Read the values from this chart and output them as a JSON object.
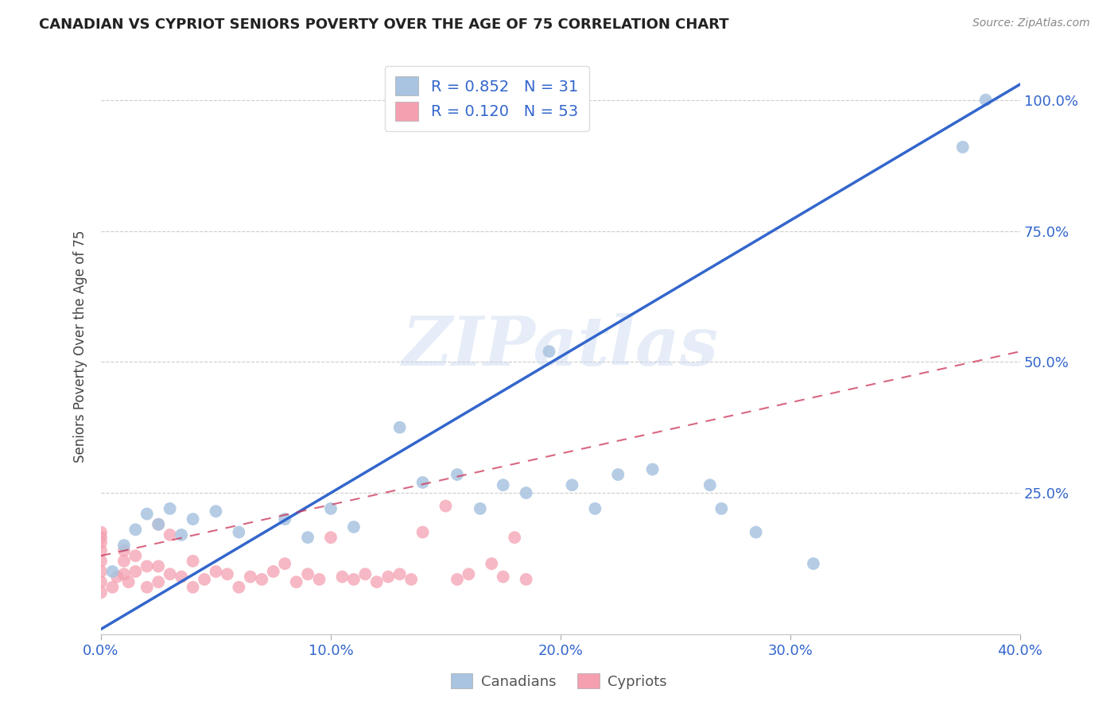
{
  "title": "CANADIAN VS CYPRIOT SENIORS POVERTY OVER THE AGE OF 75 CORRELATION CHART",
  "source": "Source: ZipAtlas.com",
  "ylabel": "Seniors Poverty Over the Age of 75",
  "xlim": [
    0.0,
    0.4
  ],
  "ylim": [
    -0.02,
    1.08
  ],
  "x_ticks": [
    0.0,
    0.1,
    0.2,
    0.3,
    0.4
  ],
  "x_tick_labels": [
    "0.0%",
    "10.0%",
    "20.0%",
    "30.0%",
    "40.0%"
  ],
  "y_ticks": [
    0.25,
    0.5,
    0.75,
    1.0
  ],
  "y_tick_labels": [
    "25.0%",
    "50.0%",
    "75.0%",
    "100.0%"
  ],
  "canadian_color": "#a8c4e0",
  "cypriot_color": "#f4a0b0",
  "canadian_line_color": "#3366cc",
  "cypriot_line_color": "#cc3355",
  "canadian_R": 0.852,
  "canadian_N": 31,
  "cypriot_R": 0.12,
  "cypriot_N": 53,
  "watermark": "ZIPatlas",
  "background_color": "#ffffff",
  "grid_color": "#cccccc",
  "ca_line_x0": 0.0,
  "ca_line_y0": -0.01,
  "ca_line_x1": 0.4,
  "ca_line_y1": 1.03,
  "cy_line_x0": 0.0,
  "cy_line_y0": 0.13,
  "cy_line_x1": 0.4,
  "cy_line_y1": 0.52,
  "canadians_x": [
    0.005,
    0.01,
    0.015,
    0.02,
    0.025,
    0.03,
    0.035,
    0.04,
    0.05,
    0.06,
    0.08,
    0.09,
    0.1,
    0.11,
    0.13,
    0.14,
    0.155,
    0.165,
    0.175,
    0.185,
    0.195,
    0.205,
    0.215,
    0.225,
    0.24,
    0.265,
    0.27,
    0.285,
    0.31,
    0.375,
    0.385
  ],
  "canadians_y": [
    0.1,
    0.15,
    0.18,
    0.21,
    0.19,
    0.22,
    0.17,
    0.2,
    0.215,
    0.175,
    0.2,
    0.165,
    0.22,
    0.185,
    0.375,
    0.27,
    0.285,
    0.22,
    0.265,
    0.25,
    0.52,
    0.265,
    0.22,
    0.285,
    0.295,
    0.265,
    0.22,
    0.175,
    0.115,
    0.91,
    1.0
  ],
  "cypriots_x": [
    0.0,
    0.0,
    0.0,
    0.0,
    0.0,
    0.0,
    0.0,
    0.0,
    0.005,
    0.007,
    0.01,
    0.01,
    0.01,
    0.012,
    0.015,
    0.015,
    0.02,
    0.02,
    0.025,
    0.025,
    0.025,
    0.03,
    0.03,
    0.035,
    0.04,
    0.04,
    0.045,
    0.05,
    0.055,
    0.06,
    0.065,
    0.07,
    0.075,
    0.08,
    0.085,
    0.09,
    0.095,
    0.1,
    0.105,
    0.11,
    0.115,
    0.12,
    0.125,
    0.13,
    0.135,
    0.14,
    0.15,
    0.155,
    0.16,
    0.17,
    0.175,
    0.18,
    0.185
  ],
  "cypriots_y": [
    0.06,
    0.08,
    0.1,
    0.12,
    0.14,
    0.155,
    0.165,
    0.175,
    0.07,
    0.09,
    0.095,
    0.12,
    0.14,
    0.08,
    0.1,
    0.13,
    0.07,
    0.11,
    0.08,
    0.11,
    0.19,
    0.095,
    0.17,
    0.09,
    0.07,
    0.12,
    0.085,
    0.1,
    0.095,
    0.07,
    0.09,
    0.085,
    0.1,
    0.115,
    0.08,
    0.095,
    0.085,
    0.165,
    0.09,
    0.085,
    0.095,
    0.08,
    0.09,
    0.095,
    0.085,
    0.175,
    0.225,
    0.085,
    0.095,
    0.115,
    0.09,
    0.165,
    0.085
  ]
}
